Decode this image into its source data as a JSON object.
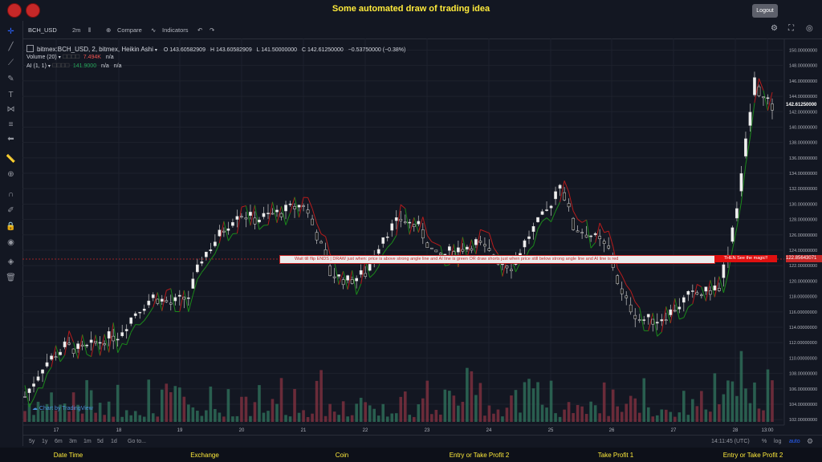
{
  "app": {
    "title": "Some automated draw of trading idea",
    "logout": "Logout"
  },
  "toolbar": {
    "symbol": "BCH_USD",
    "interval": "2m",
    "compare": "Compare",
    "indicators": "Indicators",
    "icons": [
      "bar-style-icon",
      "compare-plus-icon",
      "indicators-icon",
      "undo-icon",
      "redo-icon",
      "settings-icon",
      "fullscreen-icon",
      "screenshot-icon"
    ]
  },
  "legend": {
    "series": "bitmex:BCH_USD, 2, bitmex, Heikin Ashi",
    "open": "O 143.60582909",
    "high": "H 143.60582909",
    "low": "L 141.50000000",
    "close": "C 142.61250000",
    "change": "−0.53750000 (−0.38%)",
    "volume_name": "Volume (20)",
    "volume_value": "7.494K",
    "volume_na": "n/a",
    "ai_name": "AI (1, 1)",
    "ai_value": "141.9000",
    "ai_na1": "n/a",
    "ai_na2": "n/a"
  },
  "annotation": {
    "text": "Wait till flip ENDS   |   DRAW just when:  price is above strong angle line and AI line is green        OR        draw shorts just when price still below strong angle line and AI line is red",
    "magic": "THEN See the magic!!"
  },
  "watermark": "Chart by TradingView",
  "price_labels": {
    "current": "142.61250000",
    "line": "122.85643071"
  },
  "colors": {
    "up": "#26a69a",
    "down": "#ef5350",
    "ai_green": "#1b8a1b",
    "ai_red": "#b71c1c",
    "accent_yellow": "#ffeb3b",
    "annotation_red": "#c62828"
  },
  "bottombar": {
    "ranges": [
      "5y",
      "1y",
      "6m",
      "3m",
      "1m",
      "5d",
      "1d"
    ],
    "goto": "Go to...",
    "time": "14:11:45 (UTC)",
    "percent": "%",
    "log": "log",
    "auto": "auto"
  },
  "footer": [
    "Date Time",
    "Exchange",
    "Coin",
    "Entry or Take Profit 2",
    "Take Profit 1",
    "Entry or Take Profit 2"
  ],
  "chart_data": {
    "type": "candlestick",
    "x_labels": [
      "17",
      "18",
      "19",
      "20",
      "21",
      "22",
      "23",
      "24",
      "25",
      "26",
      "27",
      "28",
      "13:00"
    ],
    "y_ticks": [
      "150.00000000",
      "148.00000000",
      "146.00000000",
      "144.00000000",
      "142.00000000",
      "140.00000000",
      "138.00000000",
      "136.00000000",
      "134.00000000",
      "132.00000000",
      "130.00000000",
      "128.00000000",
      "126.00000000",
      "124.00000000",
      "122.00000000",
      "120.00000000",
      "118.00000000",
      "116.00000000",
      "114.00000000",
      "112.00000000",
      "110.00000000",
      "108.00000000",
      "106.00000000",
      "104.00000000",
      "102.00000000"
    ],
    "ylim": [
      101.5,
      151.3
    ],
    "price_path": [
      [
        0,
        105
      ],
      [
        4,
        109
      ],
      [
        9,
        111.5
      ],
      [
        13,
        111
      ],
      [
        18,
        112.5
      ],
      [
        21,
        113
      ],
      [
        25,
        116
      ],
      [
        29,
        118
      ],
      [
        33,
        117
      ],
      [
        37,
        118
      ],
      [
        40,
        123
      ],
      [
        44,
        126
      ],
      [
        48,
        129
      ],
      [
        52,
        128
      ],
      [
        58,
        129
      ],
      [
        63,
        130
      ],
      [
        66,
        126
      ],
      [
        69,
        121
      ],
      [
        73,
        120
      ],
      [
        77,
        121
      ],
      [
        81,
        126
      ],
      [
        85,
        128
      ],
      [
        89,
        127
      ],
      [
        93,
        123
      ],
      [
        97,
        124
      ],
      [
        102,
        125
      ],
      [
        106,
        123
      ],
      [
        110,
        122
      ],
      [
        114,
        126
      ],
      [
        118,
        129
      ],
      [
        121,
        133
      ],
      [
        124,
        127
      ],
      [
        128,
        126
      ],
      [
        132,
        124
      ],
      [
        135,
        118
      ],
      [
        139,
        115
      ],
      [
        143,
        115
      ],
      [
        146,
        116
      ],
      [
        150,
        118
      ],
      [
        154,
        118.5
      ],
      [
        157,
        119.5
      ],
      [
        159,
        124
      ],
      [
        161,
        130
      ],
      [
        163,
        138
      ],
      [
        165,
        146
      ],
      [
        167,
        143.5
      ],
      [
        169,
        142.6
      ]
    ],
    "candle_count": 170,
    "line_value": 122.85643071,
    "current_value": 142.6125
  }
}
